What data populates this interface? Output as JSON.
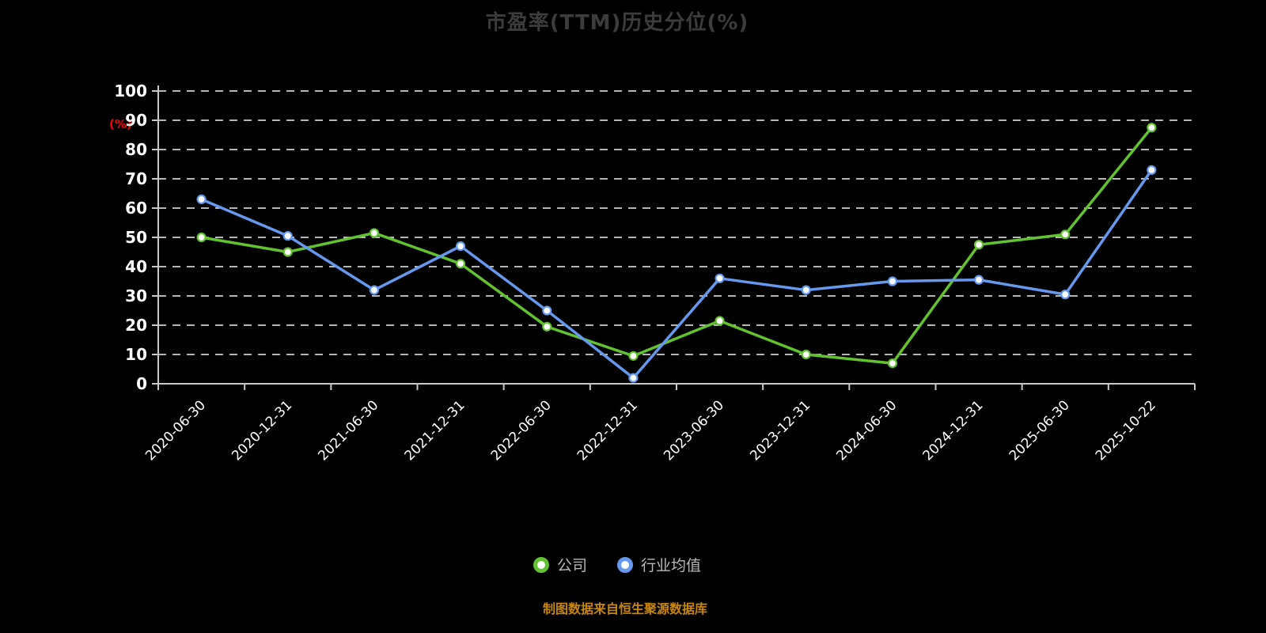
{
  "footer_note": "制图数据来自恒生聚源数据库",
  "colors": {
    "background": "#000000",
    "axis": "#c8c8c8",
    "grid": "#f2f2f2",
    "title": "#3c3c3c",
    "tick_label": "#ffffff",
    "unit_label": "#ff0000",
    "legend_text": "#b9b9b9",
    "footer": "#c8860a",
    "marker_fill": "#ffffff"
  },
  "chart_data": {
    "type": "line",
    "title": "市盈率(TTM)历史分位(%)",
    "xlabel": "",
    "ylabel": "(%)",
    "ylim": [
      0,
      100
    ],
    "ytick_step": 10,
    "grid": "dashed-horizontal",
    "legend_position": "bottom",
    "categories": [
      "2020-06-30",
      "2020-12-31",
      "2021-06-30",
      "2021-12-31",
      "2022-06-30",
      "2022-12-31",
      "2023-06-30",
      "2023-12-31",
      "2024-06-30",
      "2024-12-31",
      "2025-06-30",
      "2025-10-22"
    ],
    "series": [
      {
        "key": "company",
        "name": "公司",
        "color": "#62c230",
        "values": [
          50,
          45,
          51.5,
          41,
          19.5,
          9.5,
          21.5,
          10,
          7,
          47.5,
          51,
          87.5
        ]
      },
      {
        "key": "industry-average",
        "name": "行业均值",
        "color": "#6699ee",
        "values": [
          63,
          50.5,
          32,
          47,
          25,
          2,
          36,
          32,
          35,
          35.5,
          30.5,
          73
        ]
      }
    ]
  }
}
